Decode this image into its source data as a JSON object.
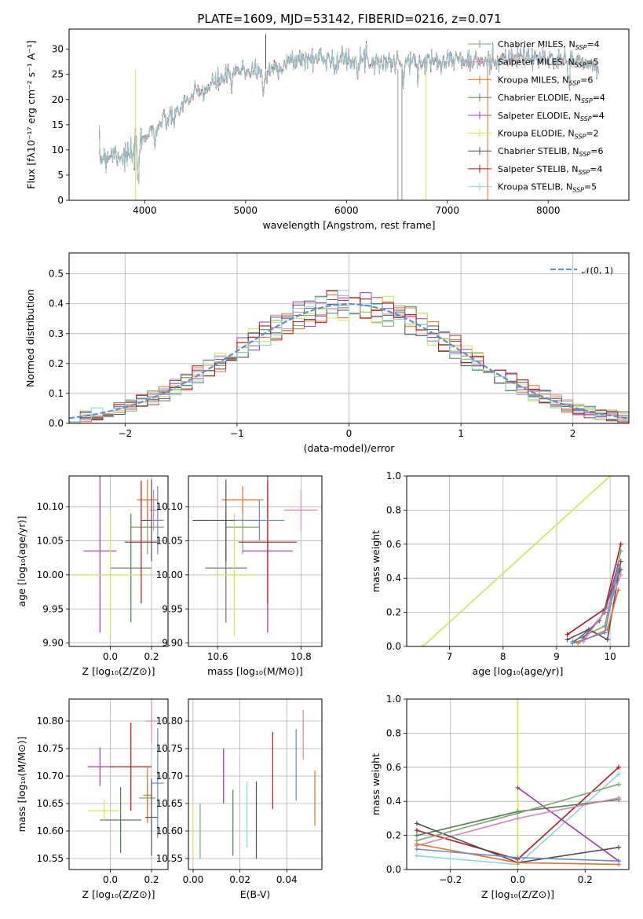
{
  "figure": {
    "title": "PLATE=1609, MJD=53142, FIBERID=0216, z=0.071"
  },
  "models": [
    {
      "name": "Chabrier MILES",
      "n": "4",
      "color": "#7aa96a"
    },
    {
      "name": "Salpeter MILES",
      "n": "5",
      "color": "#e082b8"
    },
    {
      "name": "Kroupa MILES",
      "n": "6",
      "color": "#e8711e"
    },
    {
      "name": "Chabrier ELODIE",
      "n": "4",
      "color": "#567d56"
    },
    {
      "name": "Salpeter ELODIE",
      "n": "4",
      "color": "#a23aa8"
    },
    {
      "name": "Kroupa ELODIE",
      "n": "2",
      "color": "#d3e64f"
    },
    {
      "name": "Chabrier STELIB",
      "n": "6",
      "color": "#505050"
    },
    {
      "name": "Salpeter STELIB",
      "n": "4",
      "color": "#b01a1a"
    },
    {
      "name": "Kroupa STELIB",
      "n": "5",
      "color": "#86d8de"
    }
  ],
  "colors": {
    "blue_model": "#6a88d8",
    "dashed_normal": "#5b8fd6"
  },
  "chart_data": [
    {
      "id": "spectrum",
      "type": "line",
      "xlabel": "wavelength [Angstrom, rest frame]",
      "ylabel": "Flux [fλ10⁻¹⁷ erg cm⁻² s⁻¹ A⁻¹]",
      "xlim": [
        3250,
        8800
      ],
      "ylim": [
        0,
        34
      ],
      "xticks": [
        4000,
        5000,
        6000,
        7000,
        8000
      ],
      "yticks": [
        0,
        5,
        10,
        15,
        20,
        25,
        30
      ],
      "grid": false,
      "legend": "top-right",
      "continuum": [
        [
          3550,
          8.5
        ],
        [
          3700,
          9.5
        ],
        [
          3850,
          8.5
        ],
        [
          3950,
          10.5
        ],
        [
          4000,
          13
        ],
        [
          4100,
          14.5
        ],
        [
          4200,
          15.5
        ],
        [
          4300,
          17.5
        ],
        [
          4400,
          19.5
        ],
        [
          4500,
          21
        ],
        [
          4600,
          22
        ],
        [
          4700,
          23.3
        ],
        [
          4800,
          24.5
        ],
        [
          4900,
          25.5
        ],
        [
          5000,
          25.8
        ],
        [
          5100,
          26
        ],
        [
          5200,
          25
        ],
        [
          5300,
          26.5
        ],
        [
          5400,
          27
        ],
        [
          5500,
          28
        ],
        [
          5600,
          28
        ],
        [
          5700,
          28.3
        ],
        [
          5800,
          28.5
        ],
        [
          5900,
          28
        ],
        [
          6000,
          28
        ],
        [
          6100,
          28
        ],
        [
          6200,
          28
        ],
        [
          6300,
          27.5
        ],
        [
          6400,
          27.5
        ],
        [
          6500,
          27.5
        ],
        [
          6600,
          27.5
        ],
        [
          6700,
          27.2
        ],
        [
          6800,
          27.5
        ],
        [
          6900,
          28
        ],
        [
          7000,
          28
        ],
        [
          7100,
          28
        ],
        [
          7200,
          27.5
        ],
        [
          7300,
          27.5
        ],
        [
          7400,
          27.5
        ],
        [
          7500,
          28
        ],
        [
          7600,
          28
        ],
        [
          7700,
          28.5
        ],
        [
          7800,
          28.5
        ],
        [
          7900,
          28
        ],
        [
          8000,
          28
        ],
        [
          8100,
          28.2
        ],
        [
          8200,
          28
        ],
        [
          8300,
          27.5
        ],
        [
          8400,
          27
        ],
        [
          8500,
          26
        ]
      ],
      "absorptions": [
        [
          3933,
          6
        ],
        [
          4102,
          3
        ],
        [
          4300,
          3
        ],
        [
          4861,
          3
        ],
        [
          5175,
          4
        ],
        [
          5893,
          3
        ],
        [
          6563,
          4
        ],
        [
          8200,
          4
        ]
      ],
      "spikes": [
        [
          3910,
          0,
          "#d3e64f"
        ],
        [
          5200,
          33,
          "#505050"
        ],
        [
          6510,
          0,
          "#999999"
        ],
        [
          6550,
          0,
          "#999999"
        ],
        [
          6790,
          0,
          "#d3e64f"
        ],
        [
          7400,
          0,
          "#e8711e"
        ]
      ]
    },
    {
      "id": "residuals",
      "type": "histogram",
      "xlabel": "(data-model)/error",
      "ylabel": "Normed distribution",
      "xlim": [
        -2.5,
        2.5
      ],
      "ylim": [
        0,
        0.57
      ],
      "xticks": [
        -2,
        -1,
        0,
        1,
        2
      ],
      "yticks": [
        0.0,
        0.1,
        0.2,
        0.3,
        0.4,
        0.5
      ],
      "grid": true,
      "legend": "top-right",
      "bin_width": 0.1,
      "normal_label": "𝒩(0, 1)"
    },
    {
      "id": "age-vs-Z",
      "type": "scatter",
      "xlabel": "Z [log₁₀(Z/Z⊙)]",
      "ylabel": "age  [log₁₀(age/yr)]",
      "xlim": [
        -0.2,
        0.28
      ],
      "ylim": [
        9.895,
        10.145
      ],
      "xticks": [
        0.0,
        0.2
      ],
      "yticks": [
        9.9,
        9.95,
        10.0,
        10.05,
        10.1
      ],
      "grid": true,
      "points": [
        {
          "m": 0,
          "x": 0.18,
          "y": 10.07,
          "xe": 0.08,
          "ye": 0.04
        },
        {
          "m": 1,
          "x": 0.21,
          "y": 10.095,
          "xe": 0.02,
          "ye": 0.03
        },
        {
          "m": 2,
          "x": 0.18,
          "y": 10.11,
          "xe": 0.05,
          "ye": 0.03
        },
        {
          "m": 3,
          "x": 0.1,
          "y": 10.01,
          "xe": 0.1,
          "ye": 0.08
        },
        {
          "m": 4,
          "x": -0.05,
          "y": 10.035,
          "xe": 0.08,
          "ye": 0.12
        },
        {
          "m": 5,
          "x": 0.0,
          "y": 10.0,
          "xe": 0.18,
          "ye": 0.09
        },
        {
          "m": 6,
          "x": 0.2,
          "y": 10.08,
          "xe": 0.05,
          "ye": 0.06
        },
        {
          "m": 7,
          "x": 0.15,
          "y": 10.048,
          "xe": 0.08,
          "ye": 0.09
        },
        {
          "m": "blue",
          "x": 0.23,
          "y": 10.08,
          "xe": 0.03,
          "ye": 0.05
        }
      ]
    },
    {
      "id": "age-vs-mass",
      "type": "scatter",
      "xlabel": "mass [log₁₀(M/M⊙)]",
      "ylabel": "",
      "xlim": [
        10.53,
        10.85
      ],
      "ylim": [
        9.895,
        10.145
      ],
      "xticks": [
        10.6,
        10.8
      ],
      "yticks": [
        9.9,
        9.95,
        10.0,
        10.05,
        10.1
      ],
      "grid": true,
      "points": [
        {
          "m": 0,
          "x": 10.66,
          "y": 10.07,
          "xe": 0.04,
          "ye": 0.04
        },
        {
          "m": 1,
          "x": 10.8,
          "y": 10.095,
          "xe": 0.04,
          "ye": 0.03
        },
        {
          "m": 2,
          "x": 10.66,
          "y": 10.11,
          "xe": 0.05,
          "ye": 0.02
        },
        {
          "m": 3,
          "x": 10.62,
          "y": 10.01,
          "xe": 0.05,
          "ye": 0.08
        },
        {
          "m": 4,
          "x": 10.72,
          "y": 10.035,
          "xe": 0.06,
          "ye": 0.12
        },
        {
          "m": 5,
          "x": 10.64,
          "y": 10.0,
          "xe": 0.05,
          "ye": 0.09
        },
        {
          "m": 6,
          "x": 10.62,
          "y": 10.08,
          "xe": 0.08,
          "ye": 0.06
        },
        {
          "m": 7,
          "x": 10.72,
          "y": 10.048,
          "xe": 0.07,
          "ye": 0.09
        },
        {
          "m": "blue",
          "x": 10.7,
          "y": 10.08,
          "xe": 0.06,
          "ye": 0.03
        }
      ]
    },
    {
      "id": "mass-weight-vs-age",
      "type": "line",
      "xlabel": "age  [log₁₀(age/yr)]",
      "ylabel": "mass weight",
      "xlim": [
        6.2,
        10.35
      ],
      "ylim": [
        0,
        1.0
      ],
      "xticks": [
        7,
        8,
        9,
        10
      ],
      "yticks": [
        0.0,
        0.2,
        0.4,
        0.6,
        0.8,
        1.0
      ],
      "grid": true,
      "series": [
        {
          "m": 5,
          "points": [
            [
              6.5,
              0.0
            ],
            [
              10.0,
              1.0
            ]
          ]
        },
        {
          "m": 7,
          "points": [
            [
              9.2,
              0.07
            ],
            [
              9.9,
              0.22
            ],
            [
              10.2,
              0.6
            ]
          ]
        },
        {
          "m": 0,
          "points": [
            [
              9.3,
              0.03
            ],
            [
              9.9,
              0.12
            ],
            [
              10.2,
              0.56
            ]
          ]
        },
        {
          "m": 6,
          "points": [
            [
              9.2,
              0.04
            ],
            [
              9.6,
              0.1
            ],
            [
              9.95,
              0.04
            ],
            [
              10.2,
              0.5
            ]
          ]
        },
        {
          "m": 3,
          "points": [
            [
              9.3,
              0.02
            ],
            [
              9.8,
              0.15
            ],
            [
              10.2,
              0.45
            ]
          ]
        },
        {
          "m": 4,
          "points": [
            [
              9.5,
              0.05
            ],
            [
              9.9,
              0.2
            ],
            [
              10.15,
              0.48
            ]
          ]
        },
        {
          "m": 2,
          "points": [
            [
              9.4,
              0.02
            ],
            [
              9.95,
              0.1
            ],
            [
              10.15,
              0.33
            ]
          ]
        },
        {
          "m": 1,
          "points": [
            [
              9.5,
              0.03
            ],
            [
              10.0,
              0.25
            ],
            [
              10.2,
              0.42
            ]
          ]
        },
        {
          "m": "blue",
          "points": [
            [
              9.3,
              0.02
            ],
            [
              9.9,
              0.08
            ],
            [
              10.15,
              0.45
            ]
          ]
        }
      ]
    },
    {
      "id": "mass-vs-Z",
      "type": "scatter",
      "xlabel": "Z [log₁₀(Z/Z⊙)]",
      "ylabel": "mass [log₁₀(M/M⊙)]",
      "xlim": [
        -0.2,
        0.28
      ],
      "ylim": [
        10.53,
        10.84
      ],
      "xticks": [
        0.0,
        0.2
      ],
      "yticks": [
        10.55,
        10.6,
        10.65,
        10.7,
        10.75,
        10.8
      ],
      "grid": true,
      "points": [
        {
          "m": 0,
          "x": 0.18,
          "y": 10.66,
          "xe": 0.04,
          "ye": 0.03
        },
        {
          "m": 1,
          "x": 0.2,
          "y": 10.8,
          "xe": 0.03,
          "ye": 0.04
        },
        {
          "m": 2,
          "x": 0.18,
          "y": 10.665,
          "xe": 0.02,
          "ye": 0.05
        },
        {
          "m": 3,
          "x": 0.05,
          "y": 10.62,
          "xe": 0.1,
          "ye": 0.06
        },
        {
          "m": 4,
          "x": -0.05,
          "y": 10.717,
          "xe": 0.06,
          "ye": 0.035
        },
        {
          "m": 5,
          "x": -0.03,
          "y": 10.637,
          "xe": 0.08,
          "ye": 0.02
        },
        {
          "m": 6,
          "x": 0.2,
          "y": 10.625,
          "xe": 0.03,
          "ye": 0.07
        },
        {
          "m": 7,
          "x": 0.1,
          "y": 10.717,
          "xe": 0.1,
          "ye": 0.08
        },
        {
          "m": "blue",
          "x": 0.23,
          "y": 10.687,
          "xe": 0.03,
          "ye": 0.1
        }
      ]
    },
    {
      "id": "mass-vs-EBV",
      "type": "scatter",
      "xlabel": "E(B-V)",
      "ylabel": "",
      "xlim": [
        -0.002,
        0.055
      ],
      "ylim": [
        10.53,
        10.84
      ],
      "xticks": [
        0.0,
        0.02,
        0.04
      ],
      "yticks": [
        10.55,
        10.6,
        10.65,
        10.7,
        10.75,
        10.8
      ],
      "grid": true,
      "points": [
        {
          "m": 0,
          "x": 0.003,
          "y": 10.6,
          "xe": 0,
          "ye": 0.05
        },
        {
          "m": 1,
          "x": 0.047,
          "y": 10.775,
          "xe": 0,
          "ye": 0.045
        },
        {
          "m": 2,
          "x": 0.052,
          "y": 10.66,
          "xe": 0,
          "ye": 0.05
        },
        {
          "m": 3,
          "x": 0.017,
          "y": 10.615,
          "xe": 0,
          "ye": 0.06
        },
        {
          "m": 4,
          "x": 0.013,
          "y": 10.7,
          "xe": 0,
          "ye": 0.05
        },
        {
          "m": 5,
          "x": 0.0,
          "y": 10.6,
          "xe": 0,
          "ye": 0.05
        },
        {
          "m": 6,
          "x": 0.027,
          "y": 10.62,
          "xe": 0,
          "ye": 0.07
        },
        {
          "m": 7,
          "x": 0.034,
          "y": 10.71,
          "xe": 0,
          "ye": 0.07
        },
        {
          "m": 8,
          "x": 0.023,
          "y": 10.63,
          "xe": 0,
          "ye": 0.06
        },
        {
          "m": "blue",
          "x": 0.044,
          "y": 10.72,
          "xe": 0,
          "ye": 0.065
        }
      ]
    },
    {
      "id": "mass-weight-vs-Z",
      "type": "line",
      "xlabel": "Z [log₁₀(Z/Z⊙)]",
      "ylabel": "mass weight",
      "xlim": [
        -0.33,
        0.33
      ],
      "ylim": [
        0,
        1.0
      ],
      "xticks": [
        -0.2,
        0.0,
        0.2
      ],
      "yticks": [
        0.0,
        0.2,
        0.4,
        0.6,
        0.8,
        1.0
      ],
      "grid": true,
      "series": [
        {
          "m": 5,
          "points": [
            [
              0.0,
              0.0
            ],
            [
              0.0,
              1.0
            ]
          ]
        },
        {
          "m": 7,
          "points": [
            [
              -0.3,
              0.23
            ],
            [
              0.0,
              0.06
            ],
            [
              0.3,
              0.6
            ]
          ]
        },
        {
          "m": 8,
          "points": [
            [
              -0.3,
              0.08
            ],
            [
              0.0,
              0.03
            ],
            [
              0.3,
              0.56
            ]
          ]
        },
        {
          "m": 4,
          "points": [
            [
              0.0,
              0.48
            ],
            [
              0.3,
              0.05
            ]
          ]
        },
        {
          "m": 3,
          "points": [
            [
              -0.3,
              0.2
            ],
            [
              0.0,
              0.34
            ],
            [
              0.3,
              0.41
            ]
          ]
        },
        {
          "m": 1,
          "points": [
            [
              -0.3,
              0.14
            ],
            [
              0.0,
              0.3
            ],
            [
              0.3,
              0.42
            ]
          ]
        },
        {
          "m": 6,
          "points": [
            [
              -0.3,
              0.27
            ],
            [
              0.0,
              0.04
            ],
            [
              0.3,
              0.13
            ]
          ]
        },
        {
          "m": 2,
          "points": [
            [
              -0.3,
              0.15
            ],
            [
              0.0,
              0.04
            ],
            [
              0.3,
              0.03
            ]
          ]
        },
        {
          "m": 0,
          "points": [
            [
              -0.3,
              0.17
            ],
            [
              0.0,
              0.33
            ],
            [
              0.3,
              0.5
            ]
          ]
        },
        {
          "m": "blue",
          "points": [
            [
              -0.3,
              0.12
            ],
            [
              0.0,
              0.07
            ],
            [
              0.3,
              0.05
            ]
          ]
        }
      ]
    }
  ]
}
